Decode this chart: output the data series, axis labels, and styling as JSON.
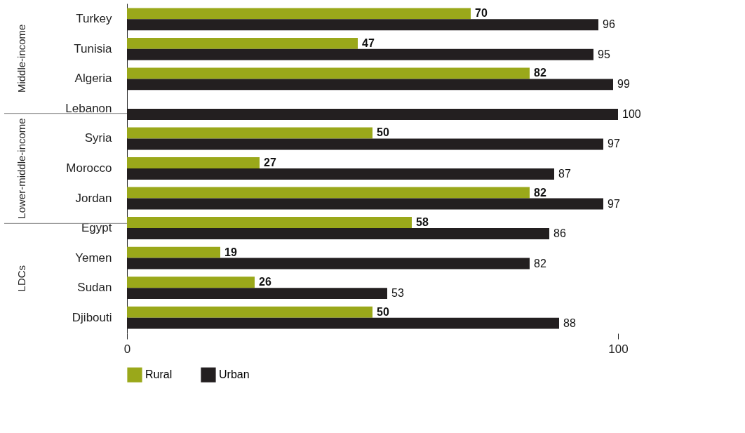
{
  "chart_data": {
    "type": "bar",
    "orientation": "horizontal",
    "categories": [
      "Turkey",
      "Tunisia",
      "Algeria",
      "Lebanon",
      "Syria",
      "Morocco",
      "Jordan",
      "Egypt",
      "Yemen",
      "Sudan",
      "Djibouti"
    ],
    "series": [
      {
        "name": "Rural",
        "color": "#9aa81a",
        "values": [
          70,
          47,
          82,
          null,
          50,
          27,
          82,
          58,
          19,
          26,
          50
        ]
      },
      {
        "name": "Urban",
        "color": "#231f20",
        "values": [
          96,
          95,
          99,
          100,
          97,
          87,
          97,
          86,
          82,
          53,
          88
        ]
      }
    ],
    "xlim": [
      0,
      100
    ],
    "xticks": [
      0,
      100
    ],
    "grid": false,
    "legend": "bottom",
    "data_labels": true,
    "annotations": [
      "Middle-income",
      "Lower-middle-income",
      "LDCs"
    ]
  }
}
